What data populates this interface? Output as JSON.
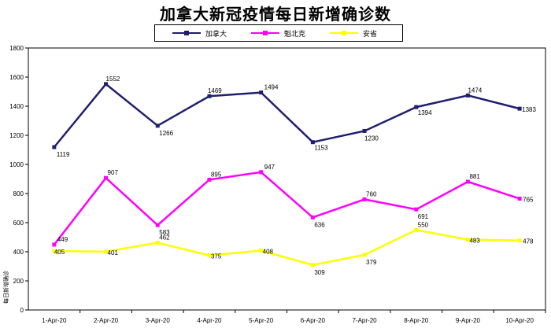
{
  "chart_data": {
    "type": "line",
    "title": "加拿大新冠疫情每日新增确诊数",
    "ylabel": "每日新增确诊",
    "xlabel": "",
    "ylim": [
      0,
      1800
    ],
    "yticks": [
      0,
      200,
      400,
      600,
      800,
      1000,
      1200,
      1400,
      1600,
      1800
    ],
    "grid": false,
    "legend_placement": "top-center",
    "categories": [
      "1-Apr-20",
      "2-Apr-20",
      "3-Apr-20",
      "4-Apr-20",
      "5-Apr-20",
      "6-Apr-20",
      "7-Apr-20",
      "8-Apr-20",
      "9-Apr-20",
      "10-Apr-20"
    ],
    "series": [
      {
        "name": "加拿大",
        "color": "#1f1f6e",
        "values": [
          1119,
          1552,
          1266,
          1469,
          1494,
          1153,
          1230,
          1394,
          1474,
          1383
        ]
      },
      {
        "name": "魁北克",
        "color": "#ff00ff",
        "values": [
          449,
          907,
          583,
          895,
          947,
          636,
          760,
          691,
          881,
          765
        ]
      },
      {
        "name": "安省",
        "color": "#ffff00",
        "values": [
          405,
          401,
          462,
          375,
          408,
          309,
          379,
          550,
          483,
          478
        ]
      }
    ]
  }
}
